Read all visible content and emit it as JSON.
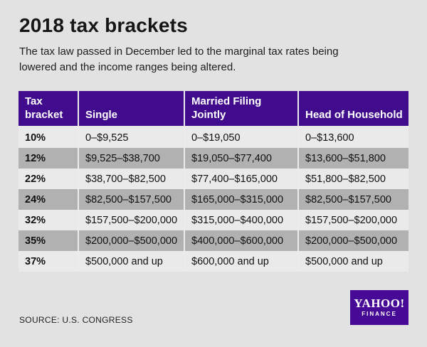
{
  "page": {
    "title": "2018 tax brackets",
    "subtitle": "The tax law passed in December led to the marginal tax rates being lowered and the income ranges being altered.",
    "source": "SOURCE: U.S. CONGRESS"
  },
  "logo": {
    "brand": "YAHOO!",
    "sub_brand": "FINANCE"
  },
  "colors": {
    "background": "#e2e2e2",
    "header_purple": "#400b8c",
    "logo_purple": "#470a96",
    "row_light": "#eaeaea",
    "row_dark": "#b1b1b1",
    "header_text": "#ffffff",
    "body_text": "#141414"
  },
  "chart_data": {
    "type": "table",
    "title": "2018 tax brackets",
    "columns": [
      "Tax bracket",
      "Single",
      "Married Filing Jointly",
      "Head of Household"
    ],
    "rows": [
      [
        "10%",
        "0–$9,525",
        "0–$19,050",
        "0–$13,600"
      ],
      [
        "12%",
        "$9,525–$38,700",
        "$19,050–$77,400",
        "$13,600–$51,800"
      ],
      [
        "22%",
        "$38,700–$82,500",
        "$77,400–$165,000",
        "$51,800–$82,500"
      ],
      [
        "24%",
        "$82,500–$157,500",
        "$165,000–$315,000",
        "$82,500–$157,500"
      ],
      [
        "32%",
        "$157,500–$200,000",
        "$315,000–$400,000",
        "$157,500–$200,000"
      ],
      [
        "35%",
        "$200,000–$500,000",
        "$400,000–$600,000",
        "$200,000–$500,000"
      ],
      [
        "37%",
        "$500,000 and up",
        "$600,000 and up",
        "$500,000 and up"
      ]
    ]
  }
}
